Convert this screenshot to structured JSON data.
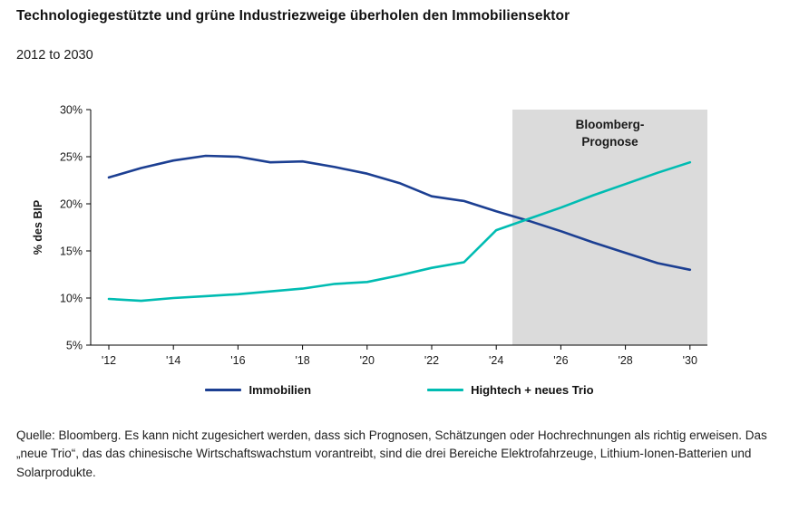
{
  "header": {
    "title": "Technologiegestützte und grüne Industriezweige überholen den Immobiliensektor",
    "subtitle": "2012 to 2030"
  },
  "chart_data": {
    "type": "line",
    "title": "Technologiegestützte und grüne Industriezweige überholen den Immobiliensektor",
    "subtitle": "2012 to 2030",
    "xlabel": "",
    "ylabel": "% des BIP",
    "ylim": [
      5,
      30
    ],
    "yticks": [
      5,
      10,
      15,
      20,
      25,
      30
    ],
    "ytick_labels": [
      "5%",
      "10%",
      "15%",
      "20%",
      "25%",
      "30%"
    ],
    "x": [
      2012,
      2013,
      2014,
      2015,
      2016,
      2017,
      2018,
      2019,
      2020,
      2021,
      2022,
      2023,
      2024,
      2025,
      2026,
      2027,
      2028,
      2029,
      2030
    ],
    "xticks": [
      2012,
      2014,
      2016,
      2018,
      2020,
      2022,
      2024,
      2026,
      2028,
      2030
    ],
    "xtick_labels": [
      "'12",
      "'14",
      "'16",
      "'18",
      "'20",
      "'22",
      "'24",
      "'26",
      "'28",
      "'30"
    ],
    "grid": false,
    "legend_position": "bottom",
    "series": [
      {
        "name": "Immobilien",
        "color": "#1c3f92",
        "values": [
          22.8,
          23.8,
          24.6,
          25.1,
          25.0,
          24.4,
          24.5,
          23.9,
          23.2,
          22.2,
          20.8,
          20.3,
          19.2,
          18.2,
          17.1,
          15.9,
          14.8,
          13.7,
          13.0
        ]
      },
      {
        "name": "Hightech + neues Trio",
        "color": "#00bcb2",
        "values": [
          9.9,
          9.7,
          10.0,
          10.2,
          10.4,
          10.7,
          11.0,
          11.5,
          11.7,
          12.4,
          13.2,
          13.8,
          17.2,
          18.4,
          19.6,
          20.9,
          22.1,
          23.3,
          24.4
        ]
      }
    ],
    "forecast_region": {
      "label": "Bloomberg-Prognose",
      "label_lines": [
        "Bloomberg-",
        "Prognose"
      ],
      "start": 2024.5,
      "end": 2030.5,
      "color": "#dbdbdb"
    }
  },
  "footer": {
    "source": "Quelle: Bloomberg. Es kann nicht zugesichert werden, dass sich Prognosen, Schätzungen oder Hochrechnungen als richtig erweisen. Das „neue Trio“, das das chinesische Wirtschaftswachstum vorantreibt, sind die drei Bereiche Elektrofahrzeuge, Lithium-Ionen-Batterien und Solarprodukte."
  }
}
